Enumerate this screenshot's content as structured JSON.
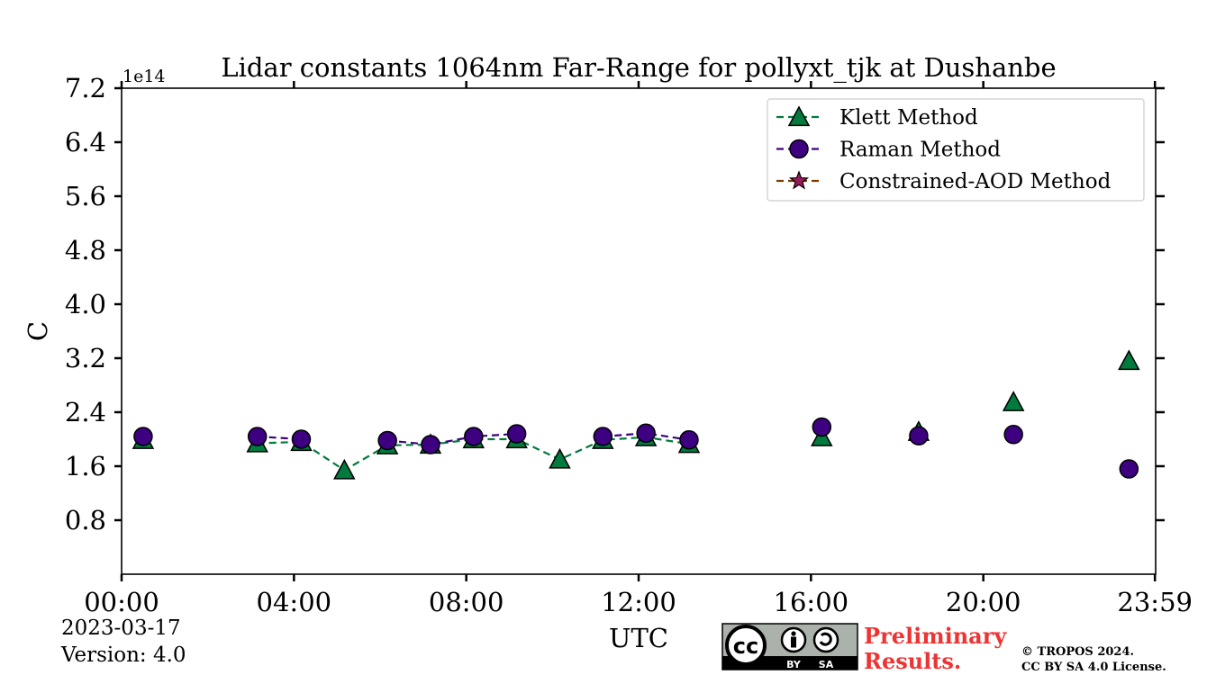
{
  "chart_data": {
    "type": "line",
    "title": "Lidar constants 1064nm Far-Range for pollyxt_tjk at Dushanbe",
    "xlabel": "UTC",
    "ylabel": "C",
    "y_offset_label": "1e14",
    "xlim": [
      0,
      24
    ],
    "ylim": [
      0,
      7.2
    ],
    "x_ticks": [
      {
        "value": 0,
        "label": "00:00"
      },
      {
        "value": 4,
        "label": "04:00"
      },
      {
        "value": 8,
        "label": "08:00"
      },
      {
        "value": 12,
        "label": "12:00"
      },
      {
        "value": 16,
        "label": "16:00"
      },
      {
        "value": 20,
        "label": "20:00"
      },
      {
        "value": 23.983,
        "label": "23:59"
      }
    ],
    "y_ticks": [
      {
        "value": 0.8,
        "label": "0.8"
      },
      {
        "value": 1.6,
        "label": "1.6"
      },
      {
        "value": 2.4,
        "label": "2.4"
      },
      {
        "value": 3.2,
        "label": "3.2"
      },
      {
        "value": 4.0,
        "label": "4.0"
      },
      {
        "value": 4.8,
        "label": "4.8"
      },
      {
        "value": 5.6,
        "label": "5.6"
      },
      {
        "value": 6.4,
        "label": "6.4"
      },
      {
        "value": 7.2,
        "label": "7.2"
      }
    ],
    "legend_position": "top-right",
    "series": [
      {
        "name": "Klett Method",
        "color": "#007a3d",
        "marker": "triangle",
        "points": [
          [
            0.5,
            1.99
          ],
          [
            3.15,
            1.94
          ],
          [
            4.17,
            1.96
          ],
          [
            5.17,
            1.54
          ],
          [
            6.17,
            1.91
          ],
          [
            7.17,
            1.92
          ],
          [
            8.17,
            2.0
          ],
          [
            9.17,
            2.0
          ],
          [
            10.17,
            1.7
          ],
          [
            11.17,
            1.99
          ],
          [
            12.17,
            2.03
          ],
          [
            13.17,
            1.93
          ],
          [
            16.25,
            2.03
          ],
          [
            18.5,
            2.11
          ],
          [
            20.7,
            2.55
          ],
          [
            23.38,
            3.16
          ]
        ],
        "segments": [
          [
            0
          ],
          [
            1,
            2,
            3,
            4,
            5,
            6,
            7,
            8,
            9,
            10,
            11
          ],
          [
            12
          ],
          [
            13
          ],
          [
            14
          ],
          [
            15
          ]
        ]
      },
      {
        "name": "Raman Method",
        "color": "#3d0080",
        "marker": "circle",
        "points": [
          [
            0.5,
            2.04
          ],
          [
            3.15,
            2.04
          ],
          [
            4.17,
            2.0
          ],
          [
            6.17,
            1.98
          ],
          [
            7.17,
            1.92
          ],
          [
            8.17,
            2.04
          ],
          [
            9.17,
            2.08
          ],
          [
            11.17,
            2.04
          ],
          [
            12.17,
            2.09
          ],
          [
            13.17,
            1.99
          ],
          [
            16.25,
            2.18
          ],
          [
            18.5,
            2.05
          ],
          [
            20.7,
            2.07
          ],
          [
            23.38,
            1.56
          ]
        ],
        "segments": [
          [
            0
          ],
          [
            1,
            2
          ],
          [
            3,
            4,
            5,
            6
          ],
          [
            7,
            8,
            9
          ],
          [
            10
          ],
          [
            11
          ],
          [
            12
          ],
          [
            13
          ]
        ]
      },
      {
        "name": "Constrained-AOD Method",
        "color": "#7a3d00",
        "marker": "star",
        "points": [],
        "segments": []
      }
    ]
  },
  "footer": {
    "date": "2023-03-17",
    "version": "Version: 4.0",
    "preliminary_line1": "Preliminary",
    "preliminary_line2": "Results.",
    "copyright_line1": "© TROPOS 2024.",
    "copyright_line2": "CC BY SA 4.0 License.",
    "cc_badge": {
      "cc": "cc",
      "by": "BY",
      "sa": "SA"
    }
  }
}
